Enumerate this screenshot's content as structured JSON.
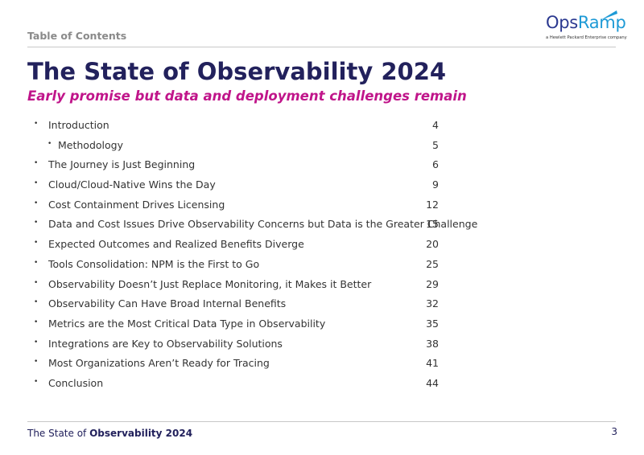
{
  "header": {
    "section_label": "Table of Contents",
    "logo": {
      "word_a": "Ops",
      "word_b": "Ramp",
      "tagline": "a Hewlett Packard Enterprise company",
      "color_a": "#2b3990",
      "color_b": "#1e9ad6"
    }
  },
  "title": "The State of Observability 2024",
  "subtitle": "Early promise but data and deployment challenges remain",
  "toc": [
    {
      "label": "Introduction",
      "page": "4",
      "level": 1
    },
    {
      "label": "Methodology",
      "page": "5",
      "level": 2
    },
    {
      "label": "The Journey is Just Beginning",
      "page": "6",
      "level": 1
    },
    {
      "label": "Cloud/Cloud-Native Wins the Day",
      "page": "9",
      "level": 1
    },
    {
      "label": "Cost Containment Drives Licensing",
      "page": "12",
      "level": 1
    },
    {
      "label": "Data and Cost Issues Drive Observability Concerns but Data is the Greater Challenge",
      "page": "15",
      "level": 1
    },
    {
      "label": "Expected Outcomes and Realized Benefits Diverge",
      "page": "20",
      "level": 1
    },
    {
      "label": "Tools Consolidation: NPM is the First to Go",
      "page": "25",
      "level": 1
    },
    {
      "label": "Observability Doesn’t Just Replace Monitoring, it Makes it Better",
      "page": "29",
      "level": 1
    },
    {
      "label": "Observability Can Have Broad Internal Benefits",
      "page": "32",
      "level": 1
    },
    {
      "label": "Metrics are the Most Critical Data Type in Observability",
      "page": "35",
      "level": 1
    },
    {
      "label": "Integrations are Key to Observability Solutions",
      "page": "38",
      "level": 1
    },
    {
      "label": "Most Organizations Aren’t Ready for Tracing",
      "page": "41",
      "level": 1
    },
    {
      "label": "Conclusion",
      "page": "44",
      "level": 1
    }
  ],
  "footer": {
    "text_prefix": "The State of ",
    "text_bold": "Observability 2024",
    "page_number": "3"
  },
  "colors": {
    "title": "#22215c",
    "subtitle": "#c0158a"
  }
}
